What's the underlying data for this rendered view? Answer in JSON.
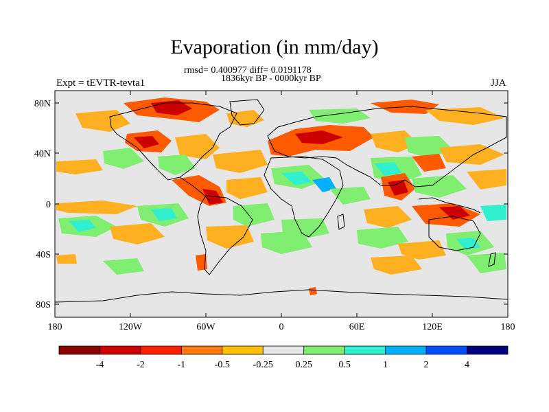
{
  "title": "Evaporation (in mm/day)",
  "stats": "rmsd= 0.400977 diff= 0.0191178",
  "period": "1836kyr BP - 0000kyr BP",
  "experiment": "Expt = tEVTR-tevta1",
  "season": "JJA",
  "axes": {
    "lat_ticks": [
      "80N",
      "40N",
      "0",
      "40S",
      "80S"
    ],
    "lon_ticks": [
      "180",
      "120W",
      "60W",
      "0",
      "60E",
      "120E",
      "180"
    ]
  },
  "colorbar": {
    "labels": [
      "-4",
      "-2",
      "-1",
      "-0.5",
      "-0.25",
      "0.25",
      "0.5",
      "1",
      "2",
      "4"
    ],
    "colors": [
      "#8c0000",
      "#cc0000",
      "#ff2000",
      "#ff7a10",
      "#ffc000",
      "#e6e6e6",
      "#80ee70",
      "#30f0d0",
      "#00b0ff",
      "#0050ff",
      "#000080"
    ]
  },
  "field_colors": {
    "background": "#e6e6e6",
    "strong_decrease": "#cc0000",
    "decrease": "#ff5a00",
    "slight_decrease": "#ffb020",
    "slight_increase": "#80ee70",
    "increase": "#30f0d0",
    "strong_increase": "#00b0ff",
    "coastline": "#000000"
  }
}
